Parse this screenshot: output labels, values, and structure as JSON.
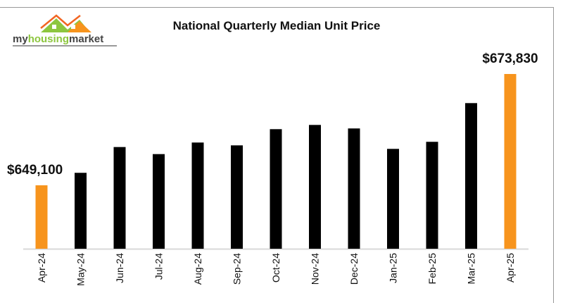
{
  "logo": {
    "text": "myhousingmarket"
  },
  "chart_data": {
    "type": "bar",
    "title": "National Quarterly Median Unit Price",
    "xlabel": "",
    "ylabel": "",
    "categories": [
      "Apr-24",
      "May-24",
      "Jun-24",
      "Jul-24",
      "Aug-24",
      "Sep-24",
      "Oct-24",
      "Nov-24",
      "Dec-24",
      "Jan-25",
      "Feb-25",
      "Mar-25",
      "Apr-25"
    ],
    "values": [
      649100,
      651870,
      657600,
      656030,
      658600,
      657970,
      661570,
      662510,
      661730,
      657190,
      658760,
      667360,
      673830
    ],
    "highlight": [
      true,
      false,
      false,
      false,
      false,
      false,
      false,
      false,
      false,
      false,
      false,
      false,
      true
    ],
    "data_labels": {
      "0": "$649,100",
      "12": "$673,830"
    },
    "ylim": [
      635000,
      676000
    ],
    "grid": false,
    "colors": {
      "bar": "#000000",
      "highlight": "#F7941D",
      "axis": "#d9d9d9"
    }
  }
}
